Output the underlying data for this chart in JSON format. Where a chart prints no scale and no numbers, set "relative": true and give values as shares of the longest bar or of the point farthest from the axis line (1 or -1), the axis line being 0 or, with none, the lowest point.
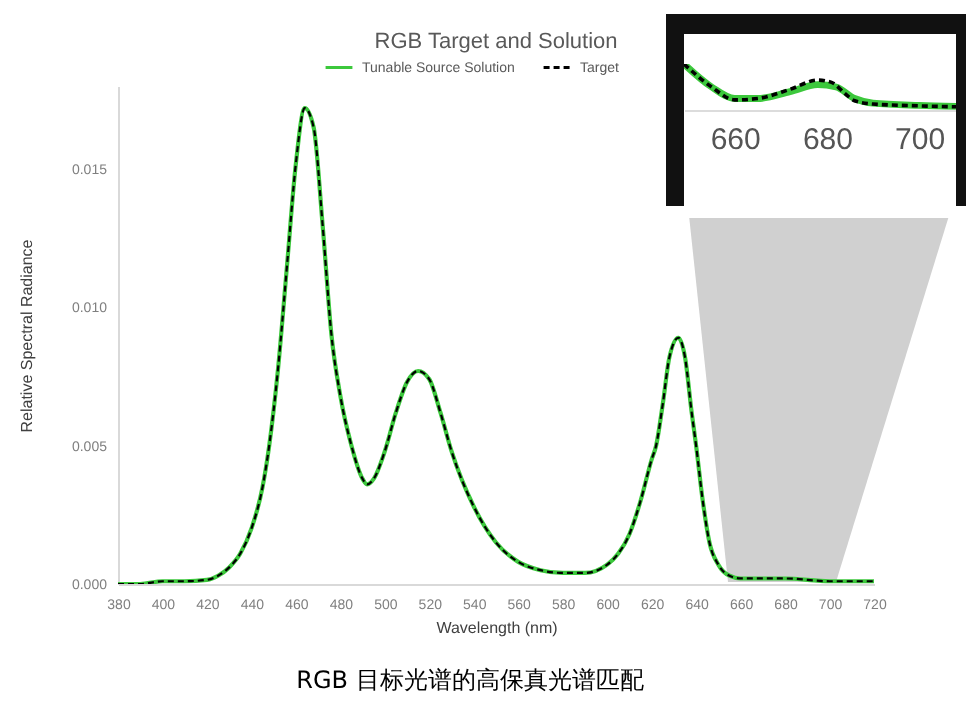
{
  "chart_data": [
    {
      "type": "line",
      "title": "RGB Target and Solution",
      "xlabel": "Wavelength (nm)",
      "ylabel": "Relative Spectral Radiance",
      "annotations": [
        "RGB 目标光谱的高保真光谱匹配"
      ],
      "legend": "top",
      "x": [
        380,
        390,
        400,
        410,
        420,
        425,
        430,
        435,
        440,
        445,
        448,
        452,
        456,
        460,
        464,
        468,
        472,
        476,
        480,
        485,
        490,
        492,
        495,
        500,
        505,
        510,
        515,
        520,
        525,
        530,
        540,
        550,
        560,
        570,
        580,
        590,
        600,
        605,
        610,
        615,
        620,
        622,
        625,
        628,
        632,
        635,
        638,
        640,
        643,
        646,
        650,
        655,
        660,
        680,
        700,
        710,
        715,
        720
      ],
      "series": [
        {
          "name": "Tunable Source Solution",
          "color": "#3cc83c",
          "line_style": "solid",
          "values": [
            0,
            0,
            0.0001,
            0.0001,
            0.00015,
            0.0003,
            0.0006,
            0.0011,
            0.002,
            0.0035,
            0.005,
            0.0078,
            0.0115,
            0.0152,
            0.0172,
            0.0165,
            0.013,
            0.009,
            0.0068,
            0.005,
            0.0038,
            0.0036,
            0.0038,
            0.0048,
            0.0062,
            0.0073,
            0.0077,
            0.0074,
            0.0062,
            0.0048,
            0.0028,
            0.0015,
            0.0008,
            0.0005,
            0.0004,
            0.0004,
            0.0007,
            0.0011,
            0.0018,
            0.003,
            0.0045,
            0.005,
            0.0065,
            0.0082,
            0.0089,
            0.0082,
            0.0062,
            0.005,
            0.003,
            0.0015,
            0.0007,
            0.0003,
            0.0002,
            0.0002,
            0.0001,
            0.0001,
            0.0001,
            0.0001
          ]
        },
        {
          "name": "Target",
          "color": "#000000",
          "line_style": "dashed",
          "values": [
            0,
            0,
            0.0001,
            0.0001,
            0.00015,
            0.0003,
            0.0006,
            0.0011,
            0.002,
            0.0035,
            0.005,
            0.0078,
            0.0115,
            0.0152,
            0.0172,
            0.0165,
            0.013,
            0.009,
            0.0068,
            0.005,
            0.0038,
            0.0036,
            0.0038,
            0.0048,
            0.0062,
            0.0073,
            0.0077,
            0.0074,
            0.0062,
            0.0048,
            0.0028,
            0.0015,
            0.0008,
            0.0005,
            0.0004,
            0.0004,
            0.0007,
            0.0011,
            0.0018,
            0.003,
            0.0045,
            0.005,
            0.0065,
            0.0082,
            0.0089,
            0.0082,
            0.0062,
            0.005,
            0.003,
            0.0015,
            0.0007,
            0.0003,
            0.0002,
            0.0002,
            0.0001,
            0.0001,
            0.0001,
            0.0001
          ]
        }
      ],
      "xlim": [
        380,
        720
      ],
      "xticks": [
        380,
        400,
        420,
        440,
        460,
        480,
        500,
        520,
        540,
        560,
        580,
        600,
        620,
        640,
        660,
        680,
        700,
        720
      ],
      "ylim": [
        0,
        0.018
      ],
      "yticks": [
        {
          "value": 0,
          "label": "0.000"
        },
        {
          "value": 0.005,
          "label": "0.005"
        },
        {
          "value": 0.01,
          "label": "0.010"
        },
        {
          "value": 0.015,
          "label": "0.015"
        }
      ]
    },
    {
      "type": "line",
      "relative": true,
      "legend": false,
      "tick_labels": "x",
      "xlim": [
        649,
        708
      ],
      "xticks": [
        660,
        680,
        700
      ],
      "series": [
        {
          "color": "#3cc83c",
          "line_style": "solid",
          "x": [
            649,
            655,
            660,
            665,
            672,
            678,
            682,
            686,
            690,
            700,
            708
          ],
          "values": [
            1,
            0.5,
            0.25,
            0.25,
            0.4,
            0.55,
            0.5,
            0.25,
            0.15,
            0.1,
            0.08
          ]
        },
        {
          "color": "#000000",
          "line_style": "dashed",
          "x": [
            649,
            655,
            660,
            665,
            672,
            678,
            681,
            684,
            686,
            690,
            700,
            708
          ],
          "values": [
            1,
            0.5,
            0.22,
            0.25,
            0.45,
            0.65,
            0.6,
            0.35,
            0.2,
            0.13,
            0.09,
            0.07
          ]
        }
      ]
    }
  ]
}
